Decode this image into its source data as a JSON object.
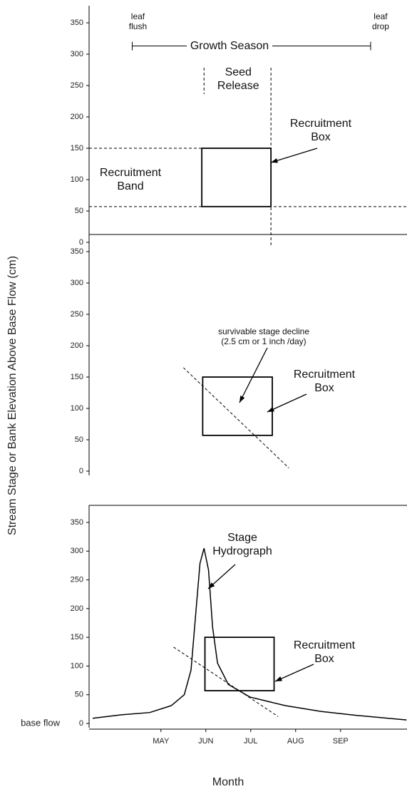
{
  "chart_data": [
    {
      "type": "line",
      "y_label": "Stream Stage or Bank Elevation Above Base Flow (cm)",
      "ylim": [
        0,
        350
      ],
      "yticks": [
        0,
        50,
        100,
        150,
        200,
        250,
        300,
        350
      ],
      "xlim": [
        3.9,
        10.98
      ],
      "growth_season": {
        "label": "Growth Season",
        "start_label": "leaf flush",
        "end_label": "leaf drop",
        "x": [
          4.86,
          10.17
        ],
        "y": 313
      },
      "seed_release": {
        "label": "Seed Release",
        "x": [
          6.46,
          7.95
        ]
      },
      "recruitment_band": {
        "label": "Recruitment Band",
        "y": [
          57,
          150
        ]
      },
      "recruitment_box": {
        "label": "Recruitment Box",
        "x": [
          6.41,
          7.95
        ],
        "y": [
          57,
          150
        ]
      }
    },
    {
      "type": "line",
      "ylim": [
        0,
        350
      ],
      "yticks": [
        0,
        50,
        100,
        150,
        200,
        250,
        300,
        350
      ],
      "xlim": [
        3.9,
        10.98
      ],
      "decline": {
        "label": "survivable stage decline",
        "rate_label": "(2.5 cm or 1 inch /day)",
        "x": [
          6.0,
          8.35
        ],
        "y": [
          165,
          5
        ]
      },
      "recruitment_box": {
        "label": "Recruitment Box",
        "x": [
          6.43,
          7.98
        ],
        "y": [
          57,
          150
        ]
      }
    },
    {
      "type": "line",
      "x_label": "Month",
      "baseline_label": "base flow",
      "ylim": [
        0,
        350
      ],
      "yticks": [
        0,
        50,
        100,
        150,
        200,
        250,
        300,
        350
      ],
      "xlim": [
        3.9,
        10.98
      ],
      "xticks": [
        {
          "value": 5.5,
          "label": "MAY"
        },
        {
          "value": 6.5,
          "label": "JUN"
        },
        {
          "value": 7.5,
          "label": "JUL"
        },
        {
          "value": 8.5,
          "label": "AUG"
        },
        {
          "value": 9.5,
          "label": "SEP"
        }
      ],
      "x": [
        3.98,
        4.62,
        5.25,
        5.73,
        6.02,
        6.17,
        6.29,
        6.37,
        6.46,
        6.56,
        6.65,
        6.76,
        7.0,
        7.48,
        8.27,
        9.06,
        9.86,
        10.97
      ],
      "series": [
        {
          "name": "Stage Hydrograph",
          "color": "#000000",
          "values": [
            9,
            15,
            19,
            31,
            50,
            93,
            205,
            279,
            305,
            267,
            168,
            105,
            68,
            46,
            31,
            21,
            14,
            6
          ]
        }
      ],
      "decline": {
        "x": [
          5.78,
          8.11
        ],
        "y": [
          133,
          12
        ]
      },
      "recruitment_box": {
        "label": "Recruitment Box",
        "x": [
          6.48,
          8.02
        ],
        "y": [
          57,
          150
        ]
      }
    }
  ]
}
